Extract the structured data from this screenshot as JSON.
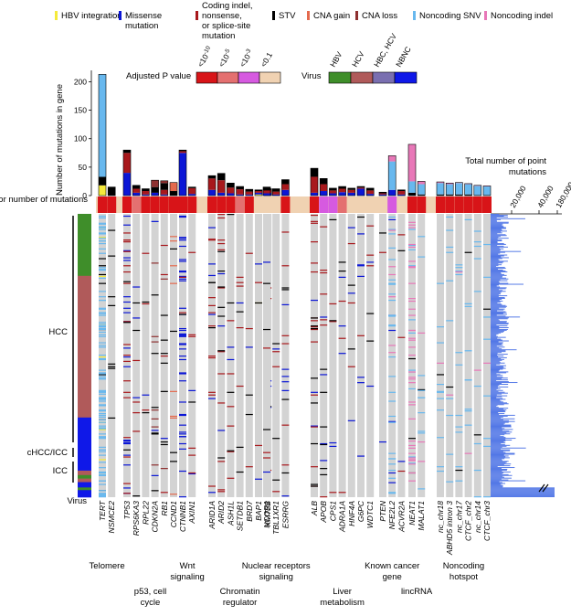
{
  "legend": {
    "mutation_types": [
      {
        "label": "HBV integration",
        "color": "#f5ea3b"
      },
      {
        "label": "Missense mutation",
        "color": "#0b16d6"
      },
      {
        "label": "Coding indel, nonsense, or splice-site mutation",
        "color": "#a8181c"
      },
      {
        "label": "STV",
        "color": "#000000"
      },
      {
        "label": "CNA gain",
        "color": "#e46a4e"
      },
      {
        "label": "CNA loss",
        "color": "#8e3030"
      },
      {
        "label": "Noncoding SNV",
        "color": "#68b8ee"
      },
      {
        "label": "Noncoding indel",
        "color": "#e878b8"
      }
    ],
    "pvalue_title": "Adjusted P value",
    "pvalue_bins": [
      {
        "label": "<10^-10",
        "color": "#d81418"
      },
      {
        "label": "<10^-5",
        "color": "#e47070"
      },
      {
        "label": "<10^-3",
        "color": "#d65ae0"
      },
      {
        "label": "<0.1",
        "color": "#f0d2b2"
      }
    ],
    "virus_title": "Virus",
    "virus_bins": [
      {
        "label": "HBV",
        "color": "#3f8e2a"
      },
      {
        "label": "HCV",
        "color": "#b05a5a"
      },
      {
        "label": "HBC, HCV",
        "color": "#7a6fb0"
      },
      {
        "label": "NBNC",
        "color": "#0f18e8"
      }
    ]
  },
  "labels": {
    "bar_ylabel": "Number of mutations in gene",
    "pval_row_label": "Adjusted P value for number of mutations",
    "virus_col_label": "Virus",
    "total_title": "Total number of point mutations",
    "total_ticks": [
      "20,000",
      "40,000",
      "180,000"
    ]
  },
  "cohorts": [
    {
      "label": "HCC"
    },
    {
      "label": "cHCC/ICC"
    },
    {
      "label": "ICC"
    }
  ],
  "categories": [
    {
      "label": "Telomere",
      "row": 1
    },
    {
      "label": "p53, cell cycle",
      "row": 2
    },
    {
      "label": "Wnt signaling",
      "row": 1
    },
    {
      "label": "Chromatin regulator",
      "row": 2
    },
    {
      "label": "Nuclear receptors signaling",
      "row": 1
    },
    {
      "label": "Liver metabolism",
      "row": 2
    },
    {
      "label": "Known cancer gene",
      "row": 1
    },
    {
      "label": "lincRNA",
      "row": 2
    },
    {
      "label": "Noncoding hotspot",
      "row": 1
    }
  ],
  "chart_data": {
    "type": "bar",
    "title": "",
    "ylabel": "Number of mutations in gene",
    "ylim": [
      0,
      220
    ],
    "yticks": [
      0,
      50,
      100,
      150,
      200
    ],
    "series_order": [
      "HBV integration",
      "Missense mutation",
      "Coding indel, nonsense, or splice-site mutation",
      "STV",
      "CNA gain",
      "CNA loss",
      "Noncoding SNV",
      "Noncoding indel"
    ],
    "genes": [
      {
        "gene": "TERT",
        "group": 0,
        "pval": "<10^-10",
        "counts": [
          18,
          0,
          0,
          15,
          0,
          0,
          180,
          0
        ]
      },
      {
        "gene": "NSMCE2",
        "group": 0,
        "pval": "<10^-10",
        "counts": [
          0,
          0,
          0,
          15,
          0,
          0,
          0,
          0
        ]
      },
      {
        "gene": "TP53",
        "group": 1,
        "pval": "<10^-10",
        "counts": [
          0,
          40,
          35,
          5,
          0,
          0,
          0,
          0
        ]
      },
      {
        "gene": "RPS6KA3",
        "group": 1,
        "pval": "<10^-5",
        "counts": [
          0,
          5,
          7,
          6,
          0,
          0,
          0,
          0
        ]
      },
      {
        "gene": "RPL22",
        "group": 1,
        "pval": "<10^-10",
        "counts": [
          0,
          2,
          6,
          4,
          0,
          0,
          0,
          0
        ]
      },
      {
        "gene": "CDKN2A",
        "group": 1,
        "pval": "<10^-10",
        "counts": [
          0,
          5,
          0,
          10,
          0,
          12,
          0,
          0
        ]
      },
      {
        "gene": "RB1",
        "group": 1,
        "pval": "<10^-10",
        "counts": [
          0,
          2,
          8,
          12,
          0,
          4,
          0,
          0
        ]
      },
      {
        "gene": "CCND1",
        "group": 1,
        "pval": "<10^-10",
        "counts": [
          0,
          0,
          0,
          8,
          15,
          0,
          0,
          0
        ]
      },
      {
        "gene": "CTNNB1",
        "group": 2,
        "pval": "<10^-10",
        "counts": [
          0,
          75,
          3,
          2,
          0,
          0,
          0,
          0
        ]
      },
      {
        "gene": "AXIN1",
        "group": 2,
        "pval": "<10^-10",
        "counts": [
          0,
          3,
          10,
          2,
          0,
          0,
          0,
          0
        ]
      },
      {
        "gene": "ARID1A",
        "group": 3,
        "pval": "<10^-10",
        "counts": [
          0,
          10,
          20,
          5,
          0,
          0,
          0,
          0
        ]
      },
      {
        "gene": "ARID2",
        "group": 3,
        "pval": "<10^-10",
        "counts": [
          0,
          5,
          22,
          12,
          0,
          0,
          0,
          0
        ]
      },
      {
        "gene": "ASH1L",
        "group": 3,
        "pval": "<10^-10",
        "counts": [
          0,
          4,
          10,
          8,
          0,
          0,
          0,
          0
        ]
      },
      {
        "gene": "SETDB1",
        "group": 3,
        "pval": "<10^-5",
        "counts": [
          0,
          2,
          9,
          5,
          0,
          0,
          0,
          0
        ]
      },
      {
        "gene": "BRD7",
        "group": 3,
        "pval": "<10^-10",
        "counts": [
          0,
          2,
          5,
          4,
          0,
          0,
          0,
          0
        ]
      },
      {
        "gene": "BAP1",
        "group": 3,
        "pval": "<0.1",
        "counts": [
          2,
          3,
          3,
          2,
          0,
          0,
          0,
          0
        ]
      },
      {
        "gene": "KMT2B",
        "group": 3,
        "pval": "<0.1",
        "counts": [
          0,
          5,
          5,
          2,
          0,
          0,
          0,
          0
        ]
      },
      {
        "gene": "NCOR1",
        "group": 4,
        "pval": "<0.1",
        "counts": [
          0,
          4,
          5,
          6,
          0,
          0,
          0,
          0
        ]
      },
      {
        "gene": "TBL1XR1",
        "group": 4,
        "pval": "<0.1",
        "counts": [
          0,
          2,
          5,
          5,
          0,
          0,
          0,
          0
        ]
      },
      {
        "gene": "ESRRG",
        "group": 4,
        "pval": "<10^-10",
        "counts": [
          0,
          10,
          10,
          8,
          0,
          0,
          0,
          0
        ]
      },
      {
        "gene": "ALB",
        "group": 5,
        "pval": "<10^-10",
        "counts": [
          0,
          5,
          28,
          15,
          0,
          0,
          0,
          0
        ]
      },
      {
        "gene": "APOB",
        "group": 5,
        "pval": "<10^-3",
        "counts": [
          0,
          8,
          12,
          10,
          0,
          0,
          0,
          0
        ]
      },
      {
        "gene": "CPS1",
        "group": 5,
        "pval": "<10^-3",
        "counts": [
          0,
          4,
          5,
          4,
          0,
          0,
          0,
          0
        ]
      },
      {
        "gene": "ADRA1A",
        "group": 5,
        "pval": "<10^-5",
        "counts": [
          0,
          6,
          6,
          4,
          0,
          0,
          0,
          0
        ]
      },
      {
        "gene": "HNF4A",
        "group": 5,
        "pval": "<0.1",
        "counts": [
          0,
          5,
          5,
          3,
          0,
          0,
          0,
          0
        ]
      },
      {
        "gene": "G6PC",
        "group": 5,
        "pval": "<0.1",
        "counts": [
          0,
          12,
          2,
          2,
          0,
          0,
          0,
          0
        ]
      },
      {
        "gene": "WDTC1",
        "group": 5,
        "pval": "<0.1",
        "counts": [
          0,
          3,
          6,
          4,
          0,
          0,
          0,
          0
        ]
      },
      {
        "gene": "PTEN",
        "group": 6,
        "pval": "<0.1",
        "counts": [
          0,
          2,
          2,
          2,
          0,
          0,
          0,
          0
        ]
      },
      {
        "gene": "NFE2L2",
        "group": 6,
        "pval": "<10^-3",
        "counts": [
          0,
          10,
          0,
          0,
          0,
          0,
          50,
          10
        ]
      },
      {
        "gene": "ACVR2A",
        "group": 6,
        "pval": "<0.1",
        "counts": [
          0,
          2,
          6,
          2,
          0,
          0,
          0,
          0
        ]
      },
      {
        "gene": "NEAT1",
        "group": 7,
        "pval": "<10^-10",
        "counts": [
          0,
          0,
          0,
          5,
          0,
          0,
          20,
          65
        ]
      },
      {
        "gene": "MALAT1",
        "group": 7,
        "pval": "<10^-10",
        "counts": [
          0,
          0,
          0,
          2,
          0,
          0,
          18,
          5
        ]
      },
      {
        "gene": "nc_chr18",
        "group": 8,
        "pval": "<10^-10",
        "counts": [
          0,
          0,
          0,
          2,
          0,
          0,
          20,
          2
        ]
      },
      {
        "gene": "ABHD5 intron 3",
        "group": 8,
        "pval": "<10^-10",
        "counts": [
          0,
          0,
          0,
          2,
          0,
          0,
          18,
          2
        ]
      },
      {
        "gene": "nc_chr17",
        "group": 8,
        "pval": "<10^-10",
        "counts": [
          0,
          0,
          0,
          2,
          0,
          0,
          20,
          1
        ]
      },
      {
        "gene": "CTCF_chr2",
        "group": 8,
        "pval": "<10^-10",
        "counts": [
          0,
          0,
          0,
          2,
          0,
          0,
          18,
          1
        ]
      },
      {
        "gene": "nc_chr14",
        "group": 8,
        "pval": "<10^-10",
        "counts": [
          0,
          0,
          0,
          1,
          0,
          0,
          16,
          1
        ]
      },
      {
        "gene": "CTCF_chr3",
        "group": 8,
        "pval": "<10^-10",
        "counts": [
          0,
          0,
          0,
          1,
          0,
          0,
          15,
          1
        ]
      }
    ],
    "sample_virus_blocks": [
      {
        "virus": "HBV",
        "samples": 70
      },
      {
        "virus": "HCV",
        "samples": 160
      },
      {
        "virus": "NBNC",
        "samples": 60
      },
      {
        "virus": "HCV",
        "samples": 5
      },
      {
        "virus": "HBV",
        "samples": 4
      },
      {
        "virus": "HCV",
        "samples": 4
      },
      {
        "virus": "NBNC",
        "samples": 6
      },
      {
        "virus": "HBV",
        "samples": 3
      },
      {
        "virus": "NBNC",
        "samples": 8
      }
    ],
    "total_mutations_axis": {
      "ticks": [
        20000,
        40000,
        180000
      ],
      "break": true
    }
  }
}
